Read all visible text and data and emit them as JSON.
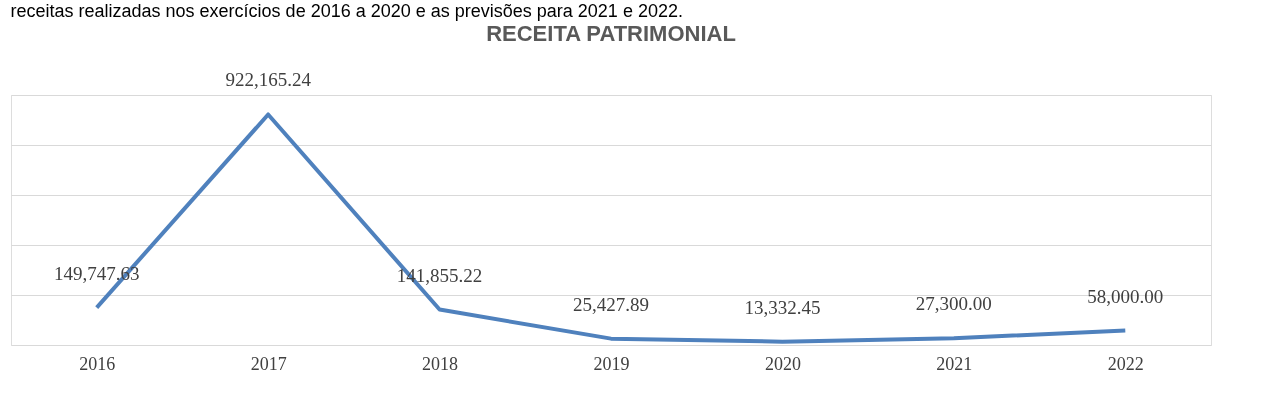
{
  "chart_data": {
    "type": "line",
    "title": "RECEITA PATRIMONIAL",
    "annotations": [
      "receitas realizadas nos exercícios de 2016 a 2020 e as previsões para 2021 e 2022."
    ],
    "categories": [
      "2016",
      "2017",
      "2018",
      "2019",
      "2020",
      "2021",
      "2022"
    ],
    "series": [
      {
        "color": "#4f81bd",
        "values": [
          149747.63,
          922165.24,
          141855.22,
          25427.89,
          13332.45,
          27300.0,
          58000.0
        ],
        "value_labels": [
          "149,747.63",
          "922,165.24",
          "141,855.22",
          "25,427.89",
          "13,332.45",
          "27,300.00",
          "58,000.00"
        ]
      }
    ],
    "tick_labels": "x",
    "grid": "y",
    "marker": "none",
    "line_style": "solid"
  }
}
